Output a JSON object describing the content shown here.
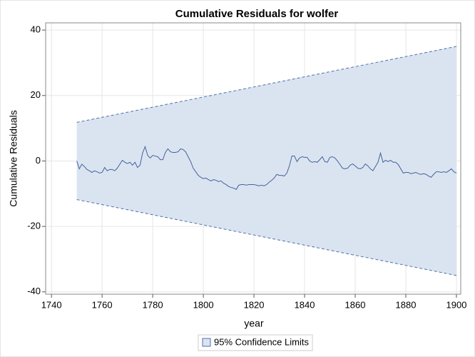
{
  "chart_data": {
    "type": "band-line",
    "title": "Cumulative Residuals for wolfer",
    "x_label": "year",
    "y_label": "Cumulative Residuals",
    "xlim": [
      1737.7,
      1901.7
    ],
    "ylim": [
      -40.7,
      42.2
    ],
    "xticks": [
      1740,
      1760,
      1780,
      1800,
      1820,
      1840,
      1860,
      1880,
      1900
    ],
    "yticks": [
      -40,
      -20,
      0,
      20,
      40
    ],
    "grid": true,
    "band": {
      "name": "95% Confidence Limits",
      "color": "#dae4f1",
      "edge_color": "#4f6fa8",
      "x": [
        1750,
        1900
      ],
      "upper": [
        11.8,
        35
      ],
      "lower": [
        -11.8,
        -35
      ]
    },
    "series": [
      {
        "color": "#46619a",
        "x": [
          1750,
          1751,
          1752,
          1753,
          1754,
          1755,
          1756,
          1757,
          1758,
          1759,
          1760,
          1761,
          1762,
          1763,
          1764,
          1765,
          1766,
          1767,
          1768,
          1769,
          1770,
          1771,
          1772,
          1773,
          1774,
          1775,
          1776,
          1777,
          1778,
          1779,
          1780,
          1781,
          1782,
          1783,
          1784,
          1785,
          1786,
          1787,
          1788,
          1789,
          1790,
          1791,
          1792,
          1793,
          1794,
          1795,
          1796,
          1797,
          1798,
          1799,
          1800,
          1801,
          1802,
          1803,
          1804,
          1805,
          1806,
          1807,
          1808,
          1809,
          1810,
          1811,
          1812,
          1813,
          1814,
          1815,
          1816,
          1817,
          1818,
          1819,
          1820,
          1821,
          1822,
          1823,
          1824,
          1825,
          1826,
          1827,
          1828,
          1829,
          1830,
          1831,
          1832,
          1833,
          1834,
          1835,
          1836,
          1837,
          1838,
          1839,
          1840,
          1841,
          1842,
          1843,
          1844,
          1845,
          1846,
          1847,
          1848,
          1849,
          1850,
          1851,
          1852,
          1853,
          1854,
          1855,
          1856,
          1857,
          1858,
          1859,
          1860,
          1861,
          1862,
          1863,
          1864,
          1865,
          1866,
          1867,
          1868,
          1869,
          1870,
          1871,
          1872,
          1873,
          1874,
          1875,
          1876,
          1877,
          1878,
          1879,
          1880,
          1881,
          1882,
          1883,
          1884,
          1885,
          1886,
          1887,
          1888,
          1889,
          1890,
          1891,
          1892,
          1893,
          1894,
          1895,
          1896,
          1897,
          1898,
          1899,
          1900
        ],
        "values": [
          0,
          -2.4,
          -1,
          -1.7,
          -2.6,
          -3,
          -3.5,
          -3,
          -3.3,
          -3.7,
          -3.5,
          -2,
          -3,
          -2.6,
          -2.6,
          -3,
          -2.2,
          -1,
          0.2,
          -0.4,
          -0.8,
          -0.4,
          -1.3,
          -0.4,
          -2,
          -1.3,
          2.4,
          4.4,
          1.7,
          0.9,
          1.7,
          1.5,
          1.3,
          0.4,
          0.4,
          2.6,
          3.7,
          2.8,
          2.6,
          2.6,
          2.8,
          3.7,
          3.5,
          2.8,
          1.3,
          -0.2,
          -2.2,
          -3.3,
          -4.4,
          -5,
          -5.4,
          -5.2,
          -5.7,
          -6.1,
          -5.7,
          -5.9,
          -6.3,
          -6.1,
          -6.8,
          -7.2,
          -7.8,
          -8.1,
          -8.3,
          -8.7,
          -7.4,
          -7.2,
          -7.2,
          -7.4,
          -7.2,
          -7.2,
          -7.2,
          -7.4,
          -7.6,
          -7.4,
          -7.6,
          -7.2,
          -6.5,
          -5.9,
          -5.2,
          -4.1,
          -4.4,
          -4.4,
          -4.6,
          -3.7,
          -1.5,
          1.5,
          1.5,
          -0.2,
          0.9,
          1.3,
          1.1,
          1.1,
          0,
          -0.4,
          -0.2,
          -0.4,
          0.4,
          1.3,
          -0.2,
          -0.4,
          1.1,
          1.3,
          0.9,
          0,
          -1.1,
          -2.2,
          -2.4,
          -2.2,
          -1.3,
          -0.9,
          -1.5,
          -2.2,
          -2.4,
          -2,
          -0.9,
          -1.5,
          -2.4,
          -3,
          -1.7,
          -0.4,
          2.4,
          -0.4,
          0.2,
          -0.2,
          0.2,
          -0.4,
          -0.4,
          -1.1,
          -2.4,
          -3.7,
          -3.5,
          -3.5,
          -3.9,
          -3.7,
          -3.5,
          -3.9,
          -4.1,
          -3.9,
          -4.1,
          -4.6,
          -5,
          -4.1,
          -3.3,
          -3.3,
          -3.5,
          -3.3,
          -3.5,
          -3,
          -2.4,
          -3.3,
          -3.7
        ]
      }
    ]
  }
}
